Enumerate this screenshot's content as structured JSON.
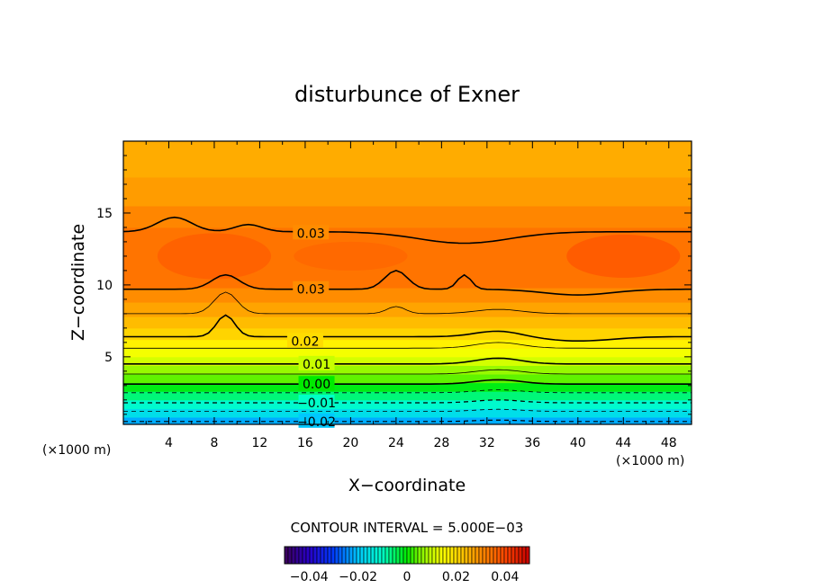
{
  "chart_data": {
    "type": "heatmap",
    "title": "disturbunce of Exner",
    "xlabel": "X−coordinate",
    "ylabel": "Z−coordinate",
    "x_unit": "(×1000 m)",
    "y_unit": "(×1000 m)",
    "xlim": [
      0,
      50
    ],
    "ylim": [
      0.3,
      20
    ],
    "x_ticks": [
      4,
      8,
      12,
      16,
      20,
      24,
      28,
      32,
      36,
      40,
      44,
      48
    ],
    "y_ticks": [
      5,
      10,
      15
    ],
    "contour_interval_label": "CONTOUR INTERVAL = 5.000E−03",
    "contour_labels": [
      {
        "text": "0.03",
        "x": 16.5,
        "z": 13.6
      },
      {
        "text": "0.03",
        "x": 16.5,
        "z": 9.7
      },
      {
        "text": "0.02",
        "x": 16.0,
        "z": 6.1
      },
      {
        "text": "0.01",
        "x": 17.0,
        "z": 4.5
      },
      {
        "text": "0.00",
        "x": 17.0,
        "z": 3.1
      },
      {
        "text": "−0.01",
        "x": 17.0,
        "z": 1.8
      },
      {
        "text": "−0.02",
        "x": 17.0,
        "z": 0.5
      }
    ],
    "colorbar": {
      "min": -0.05,
      "max": 0.05,
      "tick_labels": [
        "−0.04",
        "−0.02",
        "0",
        "0.02",
        "0.04"
      ],
      "tick_values": [
        -0.04,
        -0.02,
        0,
        0.02,
        0.04
      ]
    }
  }
}
